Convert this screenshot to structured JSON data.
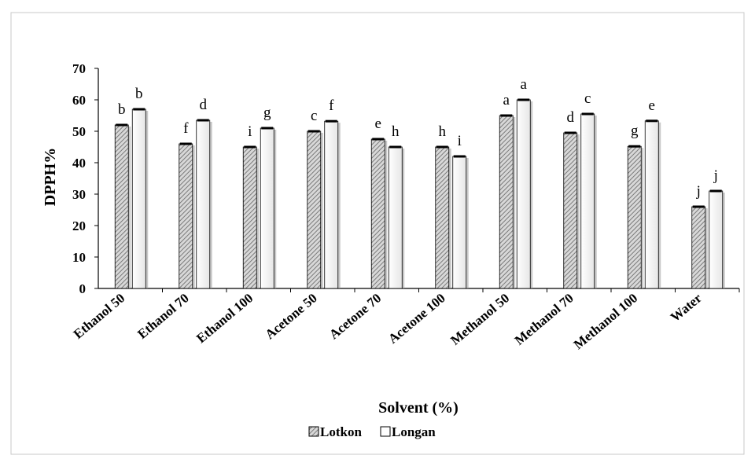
{
  "chart_data": {
    "type": "bar",
    "title": "",
    "xlabel": "Solvent (%)",
    "ylabel": "DPPH%",
    "ylim": [
      0,
      70
    ],
    "yticks": [
      0,
      10,
      20,
      30,
      40,
      50,
      60,
      70
    ],
    "grid": false,
    "legend_position": "bottom",
    "categories": [
      "Ethanol 50",
      "Ethanol 70",
      "Ethanol 100",
      "Acetone 50",
      "Acetone 70",
      "Acetone 100",
      "Methanol 50",
      "Methanol 70",
      "Methanol 100",
      "Water"
    ],
    "series": [
      {
        "name": "Lotkon",
        "pattern": "hatched",
        "color": "#a0a0a0",
        "values": [
          52,
          46,
          45,
          50,
          47.5,
          45,
          55,
          49.5,
          45.2,
          26
        ],
        "labels": [
          "b",
          "f",
          "i",
          "c",
          "e",
          "h",
          "a",
          "d",
          "g",
          "j"
        ]
      },
      {
        "name": "Longan",
        "pattern": "solid",
        "color": "#f2f2f2",
        "values": [
          57,
          53.5,
          51,
          53.2,
          45,
          42,
          60,
          55.5,
          53.3,
          31
        ],
        "labels": [
          "b",
          "d",
          "g",
          "f",
          "h",
          "i",
          "a",
          "c",
          "e",
          "j"
        ]
      }
    ]
  }
}
